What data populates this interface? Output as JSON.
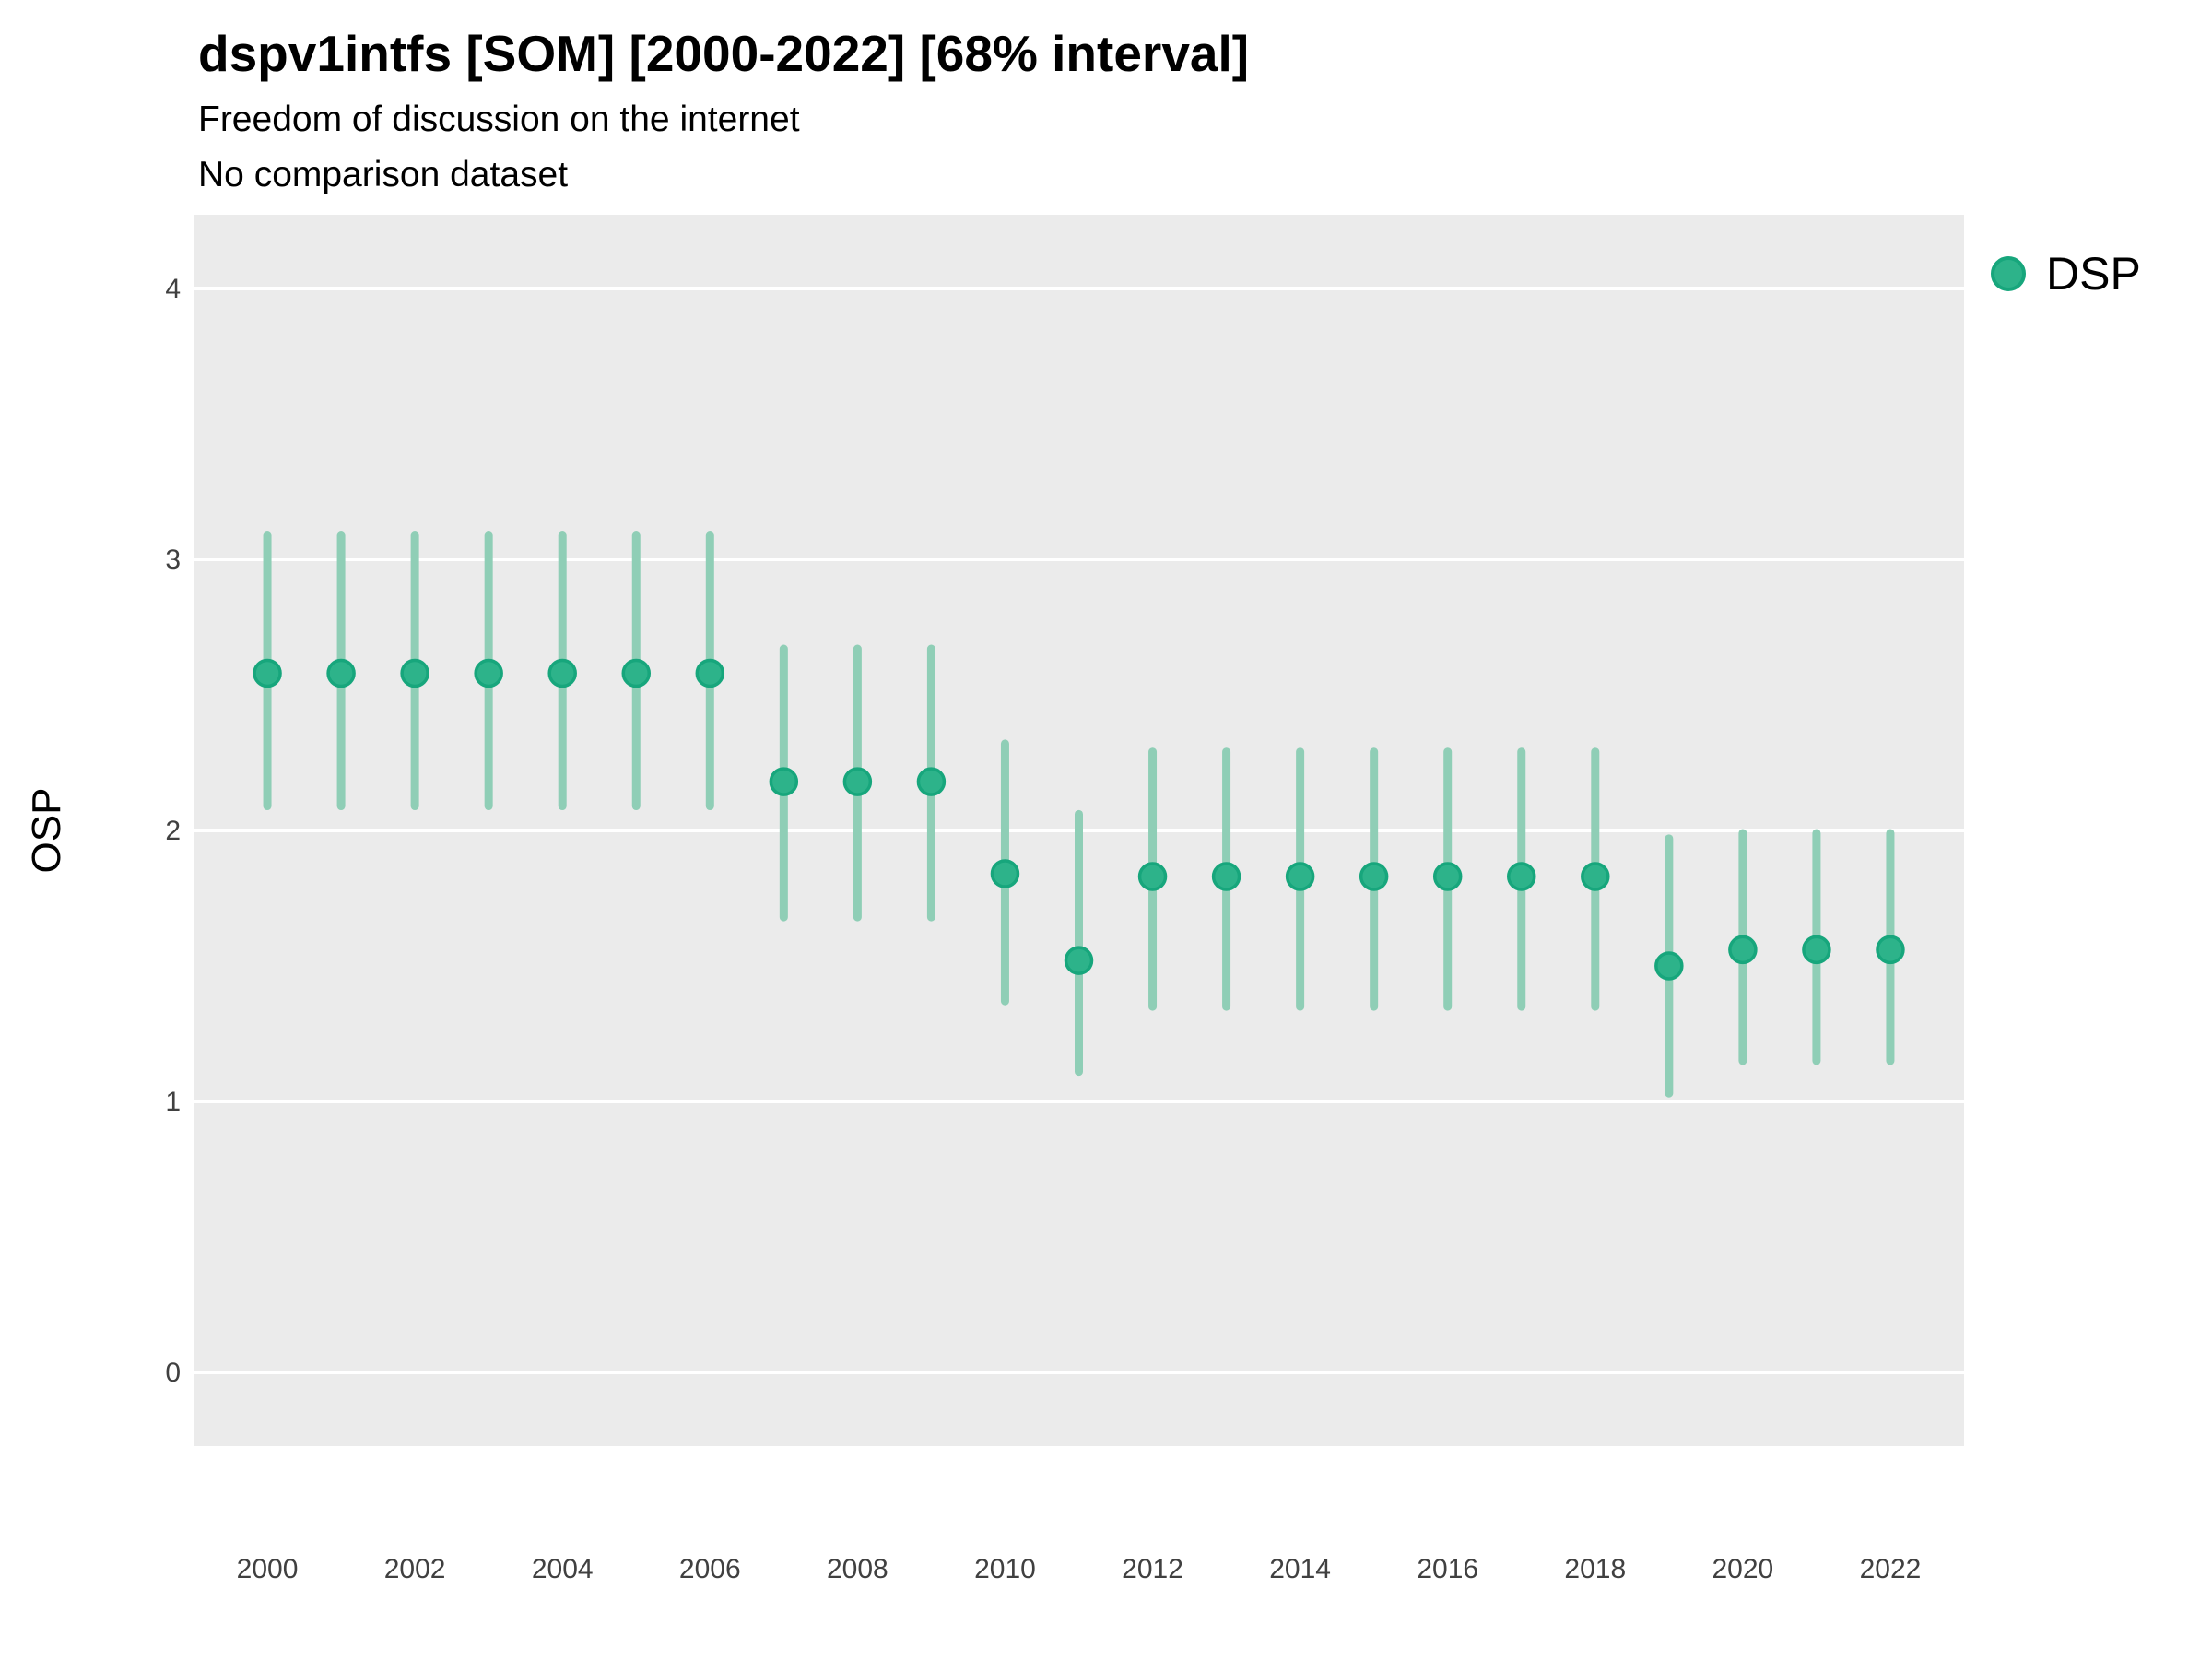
{
  "header": {
    "title": "dspv1intfs [SOM] [2000-2022] [68% interval]",
    "subtitle_line1": "Freedom of discussion on the internet",
    "subtitle_line2": "No comparison dataset"
  },
  "legend": {
    "label": "DSP",
    "position": "right",
    "swatch_fill": "#2db38a",
    "swatch_stroke": "#17a67c"
  },
  "chart_data": {
    "type": "scatter",
    "subtype": "pointrange",
    "title": "dspv1intfs [SOM] [2000-2022] [68% interval]",
    "subtitle": "Freedom of discussion on the internet",
    "note": "No comparison dataset",
    "xlabel": "",
    "ylabel": "OSP",
    "interval_label": "68% interval",
    "xlim": [
      1999,
      2023
    ],
    "ylim": [
      -0.272,
      4.272
    ],
    "x_ticks": [
      2000,
      2002,
      2004,
      2006,
      2008,
      2010,
      2012,
      2014,
      2016,
      2018,
      2020,
      2022
    ],
    "y_ticks": [
      0,
      1,
      2,
      3,
      4
    ],
    "grid": "major-horizontal-only",
    "panel_bg": "#ebebeb",
    "grid_color": "#ffffff",
    "point_fill": "#2db38a",
    "point_stroke": "#17a67c",
    "errorbar_color": "#8fceb6",
    "tick_label_color": "#404040",
    "series": [
      {
        "name": "DSP",
        "points": [
          {
            "year": 2000,
            "value": 2.58,
            "lo": 2.09,
            "hi": 3.09
          },
          {
            "year": 2001,
            "value": 2.58,
            "lo": 2.09,
            "hi": 3.09
          },
          {
            "year": 2002,
            "value": 2.58,
            "lo": 2.09,
            "hi": 3.09
          },
          {
            "year": 2003,
            "value": 2.58,
            "lo": 2.09,
            "hi": 3.09
          },
          {
            "year": 2004,
            "value": 2.58,
            "lo": 2.09,
            "hi": 3.09
          },
          {
            "year": 2005,
            "value": 2.58,
            "lo": 2.09,
            "hi": 3.09
          },
          {
            "year": 2006,
            "value": 2.58,
            "lo": 2.09,
            "hi": 3.09
          },
          {
            "year": 2007,
            "value": 2.18,
            "lo": 1.68,
            "hi": 2.67
          },
          {
            "year": 2008,
            "value": 2.18,
            "lo": 1.68,
            "hi": 2.67
          },
          {
            "year": 2009,
            "value": 2.18,
            "lo": 1.68,
            "hi": 2.67
          },
          {
            "year": 2010,
            "value": 1.84,
            "lo": 1.37,
            "hi": 2.32
          },
          {
            "year": 2011,
            "value": 1.52,
            "lo": 1.11,
            "hi": 2.06
          },
          {
            "year": 2012,
            "value": 1.83,
            "lo": 1.35,
            "hi": 2.29
          },
          {
            "year": 2013,
            "value": 1.83,
            "lo": 1.35,
            "hi": 2.29
          },
          {
            "year": 2014,
            "value": 1.83,
            "lo": 1.35,
            "hi": 2.29
          },
          {
            "year": 2015,
            "value": 1.83,
            "lo": 1.35,
            "hi": 2.29
          },
          {
            "year": 2016,
            "value": 1.83,
            "lo": 1.35,
            "hi": 2.29
          },
          {
            "year": 2017,
            "value": 1.83,
            "lo": 1.35,
            "hi": 2.29
          },
          {
            "year": 2018,
            "value": 1.83,
            "lo": 1.35,
            "hi": 2.29
          },
          {
            "year": 2019,
            "value": 1.5,
            "lo": 1.03,
            "hi": 1.97
          },
          {
            "year": 2020,
            "value": 1.56,
            "lo": 1.15,
            "hi": 1.99
          },
          {
            "year": 2021,
            "value": 1.56,
            "lo": 1.15,
            "hi": 1.99
          },
          {
            "year": 2022,
            "value": 1.56,
            "lo": 1.15,
            "hi": 1.99
          }
        ]
      }
    ]
  }
}
